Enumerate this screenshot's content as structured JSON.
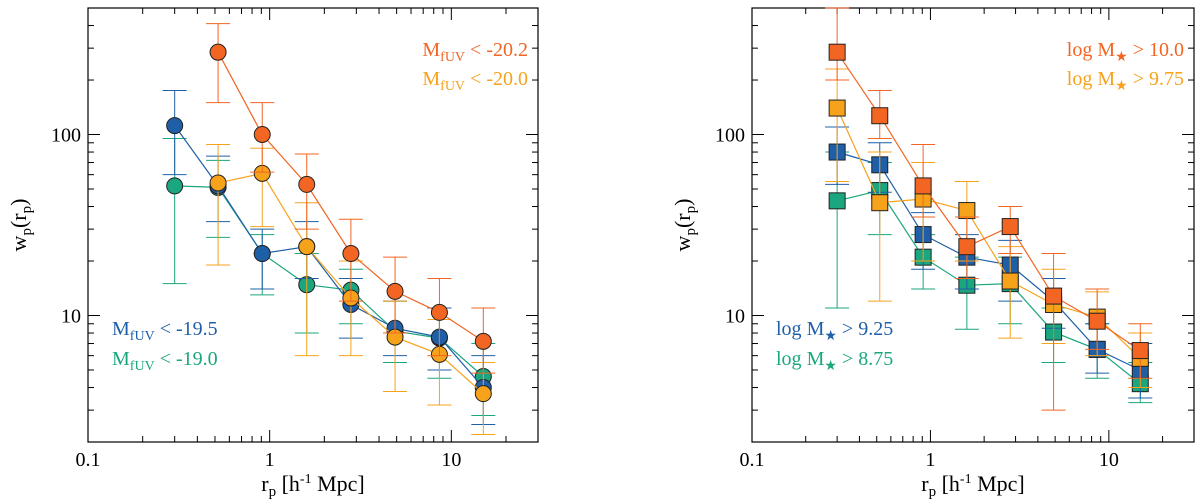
{
  "chart_data": [
    {
      "type": "scatter",
      "marker": "circle",
      "xlabel": "r_p [h^-1 Mpc]",
      "xlabel_parts": {
        "main": "r",
        "sub": "p",
        "rest1": " [h",
        "sup": "-1",
        "rest2": " Mpc]"
      },
      "ylabel": "w_p(r_p)",
      "ylabel_parts": {
        "main": "w",
        "sub1": "p",
        "mid": "(r",
        "sub2": "p",
        "end": ")"
      },
      "xscale": "log",
      "yscale": "log",
      "xlim": [
        0.1,
        30
      ],
      "ylim": [
        2,
        500
      ],
      "xticks": [
        {
          "value": 0.1,
          "label": "0.1"
        },
        {
          "value": 1,
          "label": "1"
        },
        {
          "value": 10,
          "label": "10"
        }
      ],
      "yticks": [
        {
          "value": 10,
          "label": "10"
        },
        {
          "value": 100,
          "label": "100"
        }
      ],
      "legend": [
        {
          "base": "M",
          "sub": "fUV",
          "rest": " < -20.2",
          "color": "#f26522",
          "placement": "top-right"
        },
        {
          "base": "M",
          "sub": "fUV",
          "rest": " < -20.0",
          "color": "#f7a21b",
          "placement": "top-right"
        },
        {
          "base": "M",
          "sub": "fUV",
          "rest": " < -19.5",
          "color": "#1f5fa8",
          "placement": "bottom-left"
        },
        {
          "base": "M",
          "sub": "fUV",
          "rest": " < -19.0",
          "color": "#1aa67e",
          "placement": "bottom-left"
        }
      ],
      "series": [
        {
          "color": "#1aa67e",
          "x": [
            0.3,
            0.52,
            0.91,
            1.6,
            2.8,
            4.9,
            8.6,
            15
          ],
          "y": [
            52,
            51,
            22,
            14.8,
            13.8,
            8.2,
            7.5,
            4.6
          ],
          "ylo": [
            15,
            27,
            13,
            8,
            9,
            5.5,
            4.5,
            2.8
          ],
          "yhi": [
            95,
            72,
            28,
            22,
            18,
            12,
            11,
            7
          ]
        },
        {
          "color": "#1f5fa8",
          "x": [
            0.3,
            0.52,
            0.91,
            1.6,
            2.8,
            4.9,
            8.6,
            15
          ],
          "y": [
            112,
            52,
            22,
            24,
            11.5,
            8.5,
            7.6,
            4
          ],
          "ylo": [
            60,
            33,
            14,
            16,
            7.5,
            6,
            5,
            2.5
          ],
          "yhi": [
            175,
            76,
            30,
            33,
            16,
            12,
            11,
            6
          ]
        },
        {
          "color": "#f7a21b",
          "x": [
            0.52,
            0.91,
            1.6,
            2.8,
            4.9,
            8.6,
            15
          ],
          "y": [
            54,
            61,
            24,
            12.5,
            7.6,
            6.1,
            3.7
          ],
          "ylo": [
            19,
            31,
            6,
            6,
            3.8,
            3.2,
            2.2
          ],
          "yhi": [
            88,
            84,
            42,
            20,
            12,
            9.5,
            5.5
          ]
        },
        {
          "color": "#f26522",
          "x": [
            0.52,
            0.91,
            1.6,
            2.8,
            4.9,
            8.6,
            15
          ],
          "y": [
            285,
            100,
            53,
            22,
            13.6,
            10.4,
            7.2
          ],
          "ylo": [
            150,
            62,
            30,
            12,
            8,
            6,
            4.8
          ],
          "yhi": [
            410,
            150,
            78,
            34,
            21,
            16,
            11
          ]
        }
      ]
    },
    {
      "type": "scatter",
      "marker": "square",
      "xlabel": "r_p [h^-1 Mpc]",
      "xlabel_parts": {
        "main": "r",
        "sub": "p",
        "rest1": " [h",
        "sup": "-1",
        "rest2": " Mpc]"
      },
      "ylabel": "w_p(r_p)",
      "ylabel_parts": {
        "main": "w",
        "sub1": "p",
        "mid": "(r",
        "sub2": "p",
        "end": ")"
      },
      "xscale": "log",
      "yscale": "log",
      "xlim": [
        0.1,
        30
      ],
      "ylim": [
        2,
        500
      ],
      "xticks": [
        {
          "value": 0.1,
          "label": "0.1"
        },
        {
          "value": 1,
          "label": "1"
        },
        {
          "value": 10,
          "label": "10"
        }
      ],
      "yticks": [
        {
          "value": 10,
          "label": "10"
        },
        {
          "value": 100,
          "label": "100"
        }
      ],
      "legend": [
        {
          "pre": "log ",
          "base": "M",
          "sub": "★",
          "rest": " > 10.0",
          "color": "#f26522",
          "placement": "top-right"
        },
        {
          "pre": "log ",
          "base": "M",
          "sub": "★",
          "rest": " > 9.75",
          "color": "#f7a21b",
          "placement": "top-right"
        },
        {
          "pre": "log ",
          "base": "M",
          "sub": "★",
          "rest": " > 9.25",
          "color": "#1f5fa8",
          "placement": "bottom-left"
        },
        {
          "pre": "log ",
          "base": "M",
          "sub": "★",
          "rest": " > 8.75",
          "color": "#1aa67e",
          "placement": "bottom-left"
        }
      ],
      "series": [
        {
          "color": "#1aa67e",
          "x": [
            0.3,
            0.52,
            0.91,
            1.6,
            2.8,
            4.9,
            8.6,
            15
          ],
          "y": [
            43,
            49,
            21,
            14.7,
            15,
            8.1,
            6.5,
            4.2
          ],
          "ylo": [
            11,
            28,
            14,
            8.4,
            9,
            5.5,
            4.5,
            3.3
          ],
          "yhi": [
            80,
            70,
            28,
            21,
            21,
            11,
            9,
            5.5
          ]
        },
        {
          "color": "#1f5fa8",
          "x": [
            0.3,
            0.52,
            0.91,
            1.6,
            2.8,
            4.9,
            8.6,
            15
          ],
          "y": [
            80,
            68,
            28,
            21,
            19,
            12,
            6.5,
            5
          ],
          "ylo": [
            53,
            48,
            18,
            14,
            12,
            8.5,
            4.8,
            3.5
          ],
          "yhi": [
            110,
            90,
            37,
            28,
            26,
            16,
            9,
            7
          ]
        },
        {
          "color": "#f7a21b",
          "x": [
            0.3,
            0.52,
            0.91,
            1.6,
            2.8,
            4.9,
            8.6,
            15
          ],
          "y": [
            140,
            42,
            44,
            38,
            15.5,
            11.5,
            9.8,
            5.8
          ],
          "ylo": [
            55,
            12,
            20,
            20,
            7.5,
            7,
            6,
            4
          ],
          "yhi": [
            230,
            80,
            70,
            55,
            24,
            18,
            13.5,
            8
          ]
        },
        {
          "color": "#f26522",
          "x": [
            0.3,
            0.52,
            0.91,
            1.6,
            2.8,
            4.9,
            8.6,
            15
          ],
          "y": [
            285,
            127,
            52,
            24,
            31,
            12.8,
            9.3,
            6.4
          ],
          "ylo": [
            200,
            95,
            35,
            16,
            22,
            3,
            6.5,
            4.5
          ],
          "yhi": [
            500,
            175,
            88,
            35,
            40,
            22,
            14,
            9
          ]
        }
      ]
    }
  ]
}
